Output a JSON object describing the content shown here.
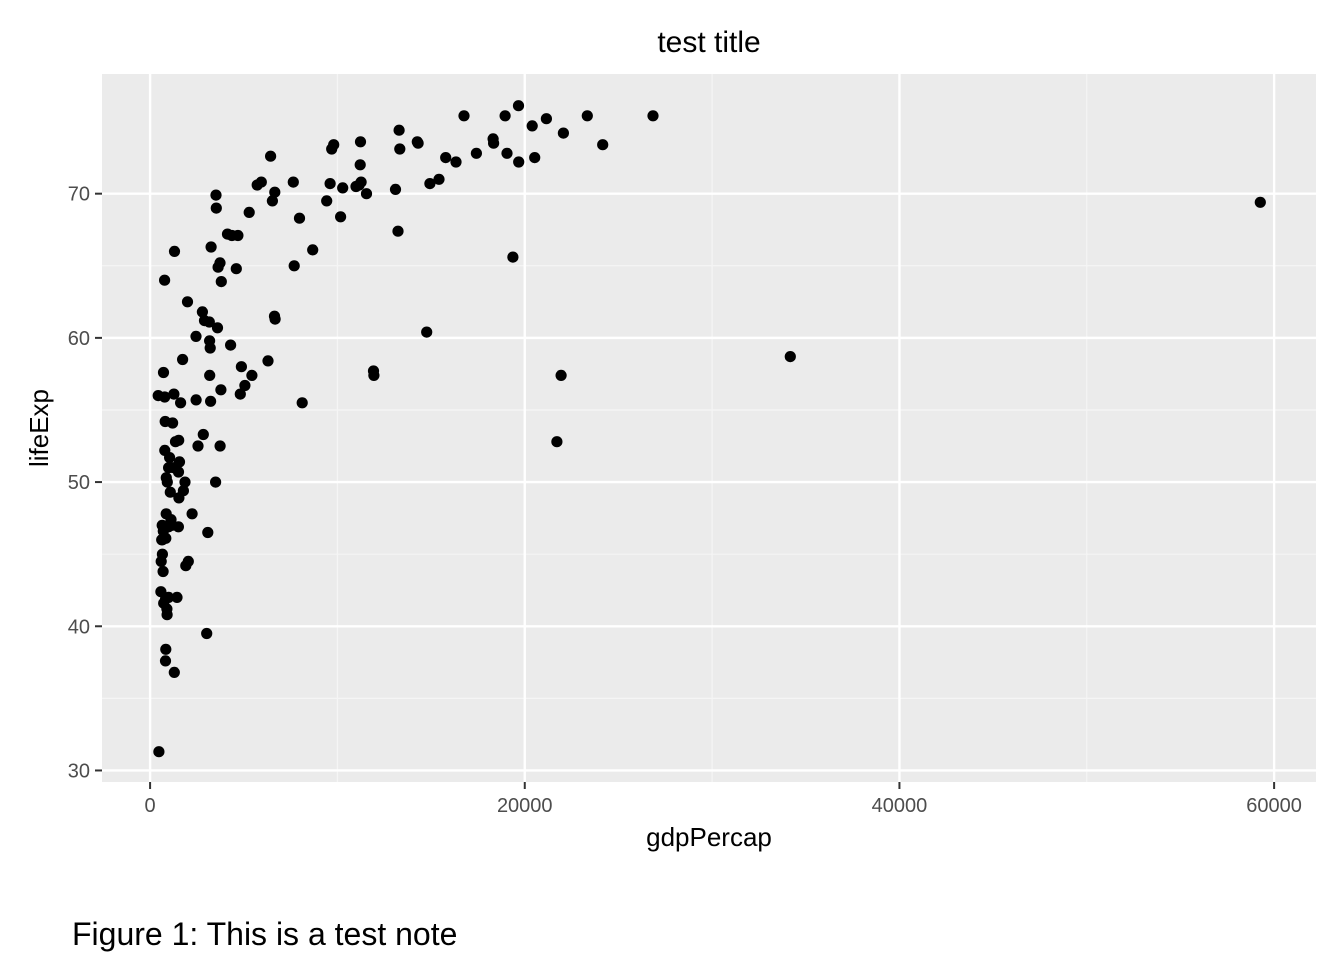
{
  "caption": "Figure 1: This is a test note",
  "colors": {
    "panel_background": "#ebebeb",
    "grid_major": "#ffffff",
    "grid_minor": "#f5f5f5",
    "tick": "#333333",
    "tick_label": "#4d4d4d",
    "point": "#000000"
  },
  "chart_data": {
    "type": "scatter",
    "title": "test title",
    "xlabel": "gdpPercap",
    "ylabel": "lifeExp",
    "xlim": [
      -2567,
      62236
    ],
    "ylim": [
      29.2,
      78.3
    ],
    "xticks": [
      0,
      20000,
      40000,
      60000
    ],
    "xtick_labels": [
      "0",
      "20000",
      "40000",
      "60000"
    ],
    "yticks": [
      30,
      40,
      50,
      60,
      70
    ],
    "ytick_labels": [
      "30",
      "40",
      "50",
      "60",
      "70"
    ],
    "grid": true,
    "legend": "none",
    "points": [
      [
        59265,
        69.4
      ],
      [
        34173,
        58.7
      ],
      [
        26844,
        75.4
      ],
      [
        24159,
        73.4
      ],
      [
        23338,
        75.4
      ],
      [
        22064,
        74.2
      ],
      [
        21937,
        57.4
      ],
      [
        21718,
        52.8
      ],
      [
        21157,
        75.2
      ],
      [
        20528,
        72.5
      ],
      [
        20399,
        74.7
      ],
      [
        19676,
        72.2
      ],
      [
        19664,
        76.1
      ],
      [
        19368,
        65.6
      ],
      [
        19051,
        72.8
      ],
      [
        18951,
        75.4
      ],
      [
        18308,
        73.8
      ],
      [
        18336,
        73.5
      ],
      [
        17418,
        72.8
      ],
      [
        16757,
        75.4
      ],
      [
        16327,
        72.2
      ],
      [
        15780,
        72.5
      ],
      [
        15424,
        71.0
      ],
      [
        14934,
        70.7
      ],
      [
        14768,
        60.4
      ],
      [
        14304,
        73.5
      ],
      [
        14266,
        73.6
      ],
      [
        13330,
        73.1
      ],
      [
        13294,
        74.4
      ],
      [
        13234,
        67.4
      ],
      [
        13098,
        70.3
      ],
      [
        11948,
        57.4
      ],
      [
        11926,
        57.7
      ],
      [
        11554,
        70.0
      ],
      [
        11264,
        70.8
      ],
      [
        11217,
        72.0
      ],
      [
        11233,
        73.6
      ],
      [
        11155,
        70.6
      ],
      [
        10994,
        70.5
      ],
      [
        10281,
        70.4
      ],
      [
        10171,
        68.4
      ],
      [
        9799,
        73.4
      ],
      [
        9692,
        73.1
      ],
      [
        9611,
        70.7
      ],
      [
        9428,
        69.5
      ],
      [
        8678,
        66.1
      ],
      [
        8119,
        55.5
      ],
      [
        7973,
        68.3
      ],
      [
        7693,
        65.0
      ],
      [
        7646,
        70.8
      ],
      [
        6671,
        61.3
      ],
      [
        6641,
        61.5
      ],
      [
        6657,
        70.1
      ],
      [
        6527,
        69.5
      ],
      [
        6432,
        72.6
      ],
      [
        6294,
        58.4
      ],
      [
        5938,
        70.8
      ],
      [
        5718,
        70.6
      ],
      [
        5434,
        57.4
      ],
      [
        5291,
        68.7
      ],
      [
        5063,
        56.7
      ],
      [
        4872,
        58.0
      ],
      [
        4814,
        56.1
      ],
      [
        4685,
        67.1
      ],
      [
        4604,
        64.8
      ],
      [
        4367,
        67.1
      ],
      [
        4295,
        59.5
      ],
      [
        4131,
        67.2
      ],
      [
        3800,
        63.9
      ],
      [
        3778,
        56.4
      ],
      [
        3737,
        52.5
      ],
      [
        3731,
        65.2
      ],
      [
        3628,
        64.9
      ],
      [
        3601,
        60.7
      ],
      [
        3536,
        69.0
      ],
      [
        3517,
        69.9
      ],
      [
        3496,
        50.0
      ],
      [
        3229,
        55.6
      ],
      [
        3259,
        66.3
      ],
      [
        3209,
        59.3
      ],
      [
        3179,
        59.8
      ],
      [
        3158,
        61.1
      ],
      [
        3180,
        57.4
      ],
      [
        3079,
        46.5
      ],
      [
        3023,
        39.5
      ],
      [
        2907,
        61.2
      ],
      [
        2841,
        53.3
      ],
      [
        2790,
        61.8
      ],
      [
        2558,
        52.5
      ],
      [
        2454,
        55.7
      ],
      [
        2449,
        60.1
      ],
      [
        2244,
        47.8
      ],
      [
        1995,
        62.5
      ],
      [
        2041,
        44.5
      ],
      [
        1908,
        44.2
      ],
      [
        1864,
        50.0
      ],
      [
        1777,
        49.4
      ],
      [
        1735,
        58.5
      ],
      [
        1627,
        55.5
      ],
      [
        1569,
        51.4
      ],
      [
        1527,
        52.9
      ],
      [
        1511,
        46.9
      ],
      [
        1515,
        50.7
      ],
      [
        1540,
        48.9
      ],
      [
        1438,
        42.0
      ],
      [
        1356,
        52.8
      ],
      [
        1303,
        66.0
      ],
      [
        1291,
        36.8
      ],
      [
        1271,
        56.1
      ],
      [
        1249,
        51.0
      ],
      [
        1200,
        54.1
      ],
      [
        1177,
        47.0
      ],
      [
        1080,
        49.3
      ],
      [
        1116,
        47.4
      ],
      [
        1040,
        51.7
      ],
      [
        990,
        42.0
      ],
      [
        988,
        51.0
      ],
      [
        984,
        46.9
      ],
      [
        918,
        50.0
      ],
      [
        907,
        40.8
      ],
      [
        900,
        41.2
      ],
      [
        863,
        50.3
      ],
      [
        860,
        47.8
      ],
      [
        837,
        46.1
      ],
      [
        841,
        38.4
      ],
      [
        829,
        41.9
      ],
      [
        823,
        37.6
      ],
      [
        804,
        54.2
      ],
      [
        785,
        52.2
      ],
      [
        779,
        55.9
      ],
      [
        775,
        64.0
      ],
      [
        716,
        57.6
      ],
      [
        725,
        41.6
      ],
      [
        705,
        46.6
      ],
      [
        693,
        43.8
      ],
      [
        658,
        45.0
      ],
      [
        651,
        46.0
      ],
      [
        648,
        47.0
      ],
      [
        620,
        46.0
      ],
      [
        593,
        44.5
      ],
      [
        577,
        42.4
      ],
      [
        470,
        31.3
      ],
      [
        431,
        56.0
      ]
    ]
  }
}
